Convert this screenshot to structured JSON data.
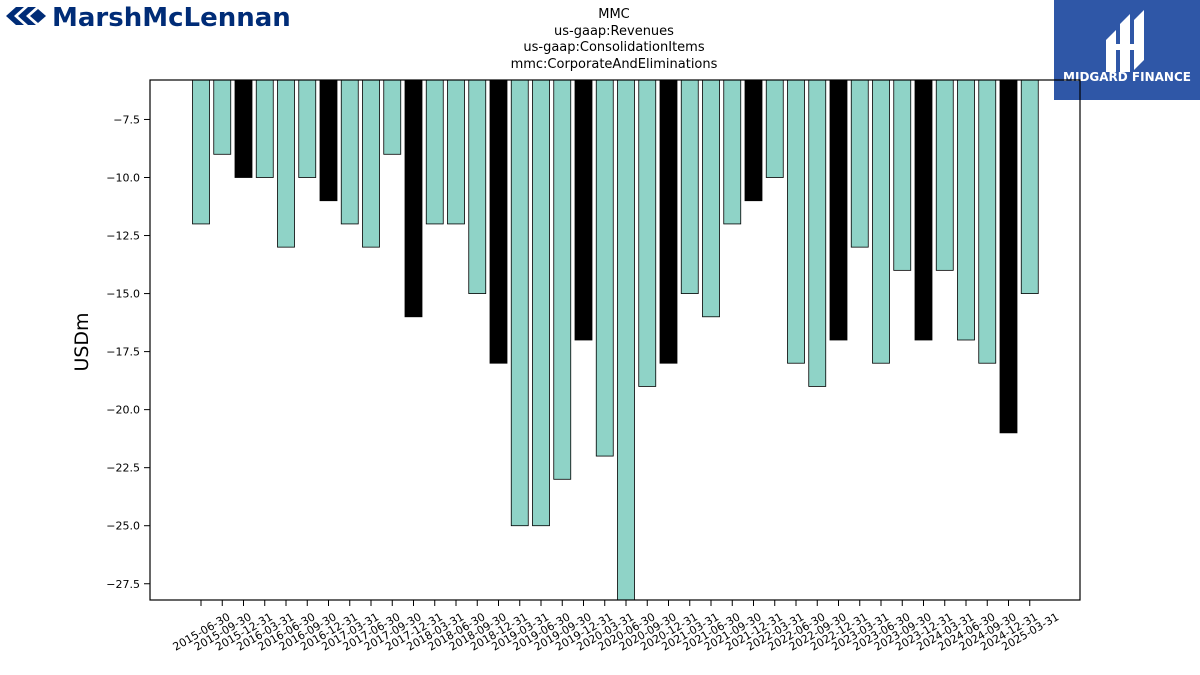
{
  "header": {
    "brand_left": "MarshMcLennan",
    "brand_right": "MIDGARD FINANCE",
    "title_lines": [
      "MMC",
      "us-gaap:Revenues",
      "us-gaap:ConsolidationItems",
      "mmc:CorporateAndEliminations"
    ]
  },
  "colors": {
    "teal": "#8fd3c7",
    "black": "#000000",
    "brand_navy": "#002c77",
    "brand_blue": "#2f57a7"
  },
  "chart_data": {
    "type": "bar",
    "title": "MMC\nus-gaap:Revenues\nus-gaap:ConsolidationItems\nmmc:CorporateAndEliminations",
    "xlabel": "",
    "ylabel": "USDm",
    "ylim": [
      -28.2,
      -5.8
    ],
    "yticks": [
      -7.5,
      -10.0,
      -12.5,
      -15.0,
      -17.5,
      -20.0,
      -22.5,
      -25.0,
      -27.5
    ],
    "ytick_labels": [
      "−7.5",
      "−10.0",
      "−12.5",
      "−15.0",
      "−17.5",
      "−20.0",
      "−22.5",
      "−25.0",
      "−27.5"
    ],
    "grid": false,
    "categories": [
      "2015-06-30",
      "2015-09-30",
      "2015-12-31",
      "2016-03-31",
      "2016-06-30",
      "2016-09-30",
      "2016-12-31",
      "2017-03-31",
      "2017-06-30",
      "2017-09-30",
      "2017-12-31",
      "2018-03-31",
      "2018-06-30",
      "2018-09-30",
      "2018-12-31",
      "2019-03-31",
      "2019-06-30",
      "2019-09-30",
      "2019-12-31",
      "2020-03-31",
      "2020-06-30",
      "2020-09-30",
      "2020-12-31",
      "2021-03-31",
      "2021-06-30",
      "2021-09-30",
      "2021-12-31",
      "2022-03-31",
      "2022-06-30",
      "2022-09-30",
      "2022-12-31",
      "2023-03-31",
      "2023-06-30",
      "2023-09-30",
      "2023-12-31",
      "2024-03-31",
      "2024-06-30",
      "2024-09-30",
      "2024-12-31",
      "2025-03-31"
    ],
    "values": [
      -12,
      -9,
      -10,
      -10,
      -13,
      -10,
      -11,
      -12,
      -13,
      -9,
      -16,
      -12,
      -12,
      -15,
      -18,
      -25,
      -25,
      -23,
      -17,
      -22,
      -29,
      -19,
      -18,
      -15,
      -16,
      -12,
      -11,
      -10,
      -18,
      -19,
      -17,
      -13,
      -18,
      -14,
      -17,
      -14,
      -17,
      -18,
      -21,
      -15
    ],
    "bar_colors": [
      "teal",
      "teal",
      "black",
      "teal",
      "teal",
      "teal",
      "black",
      "teal",
      "teal",
      "teal",
      "black",
      "teal",
      "teal",
      "teal",
      "black",
      "teal",
      "teal",
      "teal",
      "black",
      "teal",
      "teal",
      "teal",
      "black",
      "teal",
      "teal",
      "teal",
      "black",
      "teal",
      "teal",
      "teal",
      "black",
      "teal",
      "teal",
      "teal",
      "black",
      "teal",
      "teal",
      "teal",
      "black",
      "teal"
    ]
  }
}
